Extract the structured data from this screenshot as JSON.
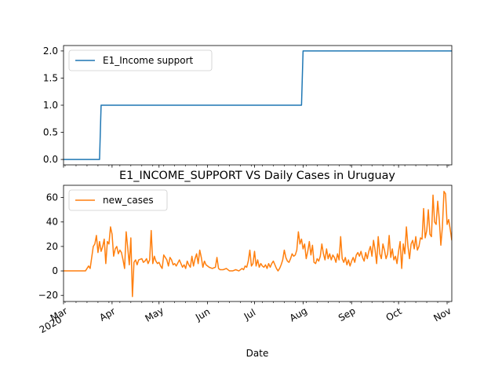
{
  "chart_data": [
    {
      "type": "line",
      "title": "",
      "xlabel": "",
      "ylabel": "",
      "xlim": [
        "2020-03-01",
        "2020-11-04"
      ],
      "ylim": [
        -0.1,
        2.1
      ],
      "yticks": [
        0.0,
        0.5,
        1.0,
        1.5,
        2.0
      ],
      "ytick_labels": [
        "0.0",
        "0.5",
        "1.0",
        "1.5",
        "2.0"
      ],
      "legend_position": "upper left",
      "grid": false,
      "series": [
        {
          "name": "E1_Income support",
          "color": "#1f77b4",
          "step_points": [
            [
              "2020-03-01",
              0
            ],
            [
              "2020-03-24",
              0
            ],
            [
              "2020-03-25",
              1
            ],
            [
              "2020-07-31",
              1
            ],
            [
              "2020-08-01",
              2
            ],
            [
              "2020-11-04",
              2
            ]
          ]
        }
      ]
    },
    {
      "type": "line",
      "title": "E1_INCOME_SUPPORT VS Daily Cases in Uruguay",
      "xlabel": "Date",
      "ylabel": "",
      "xlim": [
        "2020-03-01",
        "2020-11-04"
      ],
      "ylim": [
        -25,
        70
      ],
      "yticks": [
        -20,
        0,
        20,
        40,
        60
      ],
      "ytick_labels": [
        "−20",
        "0",
        "20",
        "40",
        "60"
      ],
      "xticks": [
        "2020-03-01",
        "2020-04-01",
        "2020-05-01",
        "2020-06-01",
        "2020-07-01",
        "2020-08-01",
        "2020-09-01",
        "2020-10-01",
        "2020-11-01"
      ],
      "xtick_labels": [
        "Mar\n2020",
        "Apr",
        "May",
        "Jun",
        "Jul",
        "Aug",
        "Sep",
        "Oct",
        "Nov"
      ],
      "legend_position": "upper left",
      "grid": false,
      "series": [
        {
          "name": "new_cases",
          "color": "#ff7f0e",
          "points": [
            [
              "2020-03-01",
              0
            ],
            [
              "2020-03-12",
              0
            ],
            [
              "2020-03-15",
              0
            ],
            [
              "2020-03-17",
              4
            ],
            [
              "2020-03-18",
              2
            ],
            [
              "2020-03-20",
              20
            ],
            [
              "2020-03-21",
              22
            ],
            [
              "2020-03-22",
              29
            ],
            [
              "2020-03-23",
              15
            ],
            [
              "2020-03-24",
              24
            ],
            [
              "2020-03-25",
              16
            ],
            [
              "2020-03-26",
              20
            ],
            [
              "2020-03-27",
              26
            ],
            [
              "2020-03-28",
              6
            ],
            [
              "2020-03-29",
              24
            ],
            [
              "2020-03-30",
              22
            ],
            [
              "2020-03-31",
              36
            ],
            [
              "2020-04-01",
              30
            ],
            [
              "2020-04-02",
              12
            ],
            [
              "2020-04-03",
              18
            ],
            [
              "2020-04-04",
              20
            ],
            [
              "2020-04-05",
              14
            ],
            [
              "2020-04-06",
              17
            ],
            [
              "2020-04-07",
              15
            ],
            [
              "2020-04-08",
              9
            ],
            [
              "2020-04-09",
              2
            ],
            [
              "2020-04-10",
              32
            ],
            [
              "2020-04-11",
              19
            ],
            [
              "2020-04-12",
              5
            ],
            [
              "2020-04-13",
              27
            ],
            [
              "2020-04-14",
              -21
            ],
            [
              "2020-04-15",
              7
            ],
            [
              "2020-04-16",
              9
            ],
            [
              "2020-04-17",
              5
            ],
            [
              "2020-04-18",
              9
            ],
            [
              "2020-04-20",
              10
            ],
            [
              "2020-04-21",
              7
            ],
            [
              "2020-04-22",
              8
            ],
            [
              "2020-04-23",
              10
            ],
            [
              "2020-04-24",
              6
            ],
            [
              "2020-04-25",
              9
            ],
            [
              "2020-04-26",
              33
            ],
            [
              "2020-04-27",
              6
            ],
            [
              "2020-04-28",
              12
            ],
            [
              "2020-04-29",
              8
            ],
            [
              "2020-04-30",
              6
            ],
            [
              "2020-05-01",
              7
            ],
            [
              "2020-05-02",
              4
            ],
            [
              "2020-05-03",
              2
            ],
            [
              "2020-05-04",
              13
            ],
            [
              "2020-05-05",
              11
            ],
            [
              "2020-05-06",
              9
            ],
            [
              "2020-05-07",
              4
            ],
            [
              "2020-05-08",
              11
            ],
            [
              "2020-05-09",
              9
            ],
            [
              "2020-05-10",
              5
            ],
            [
              "2020-05-11",
              6
            ],
            [
              "2020-05-12",
              4
            ],
            [
              "2020-05-14",
              9
            ],
            [
              "2020-05-15",
              6
            ],
            [
              "2020-05-16",
              3
            ],
            [
              "2020-05-17",
              5
            ],
            [
              "2020-05-18",
              2
            ],
            [
              "2020-05-19",
              8
            ],
            [
              "2020-05-20",
              5
            ],
            [
              "2020-05-21",
              3
            ],
            [
              "2020-05-22",
              12
            ],
            [
              "2020-05-23",
              4
            ],
            [
              "2020-05-24",
              10
            ],
            [
              "2020-05-25",
              14
            ],
            [
              "2020-05-26",
              6
            ],
            [
              "2020-05-27",
              17
            ],
            [
              "2020-05-28",
              11
            ],
            [
              "2020-05-29",
              3
            ],
            [
              "2020-05-30",
              8
            ],
            [
              "2020-05-31",
              5
            ],
            [
              "2020-06-02",
              3
            ],
            [
              "2020-06-04",
              2
            ],
            [
              "2020-06-06",
              3
            ],
            [
              "2020-06-07",
              11
            ],
            [
              "2020-06-08",
              2
            ],
            [
              "2020-06-09",
              1
            ],
            [
              "2020-06-11",
              1
            ],
            [
              "2020-06-13",
              2
            ],
            [
              "2020-06-15",
              0
            ],
            [
              "2020-06-17",
              0
            ],
            [
              "2020-06-19",
              1
            ],
            [
              "2020-06-21",
              0
            ],
            [
              "2020-06-23",
              2
            ],
            [
              "2020-06-24",
              1
            ],
            [
              "2020-06-25",
              4
            ],
            [
              "2020-06-26",
              3
            ],
            [
              "2020-06-27",
              8
            ],
            [
              "2020-06-28",
              17
            ],
            [
              "2020-06-29",
              4
            ],
            [
              "2020-06-30",
              6
            ],
            [
              "2020-07-01",
              16
            ],
            [
              "2020-07-02",
              4
            ],
            [
              "2020-07-03",
              9
            ],
            [
              "2020-07-04",
              3
            ],
            [
              "2020-07-05",
              6
            ],
            [
              "2020-07-06",
              4
            ],
            [
              "2020-07-07",
              3
            ],
            [
              "2020-07-08",
              5
            ],
            [
              "2020-07-09",
              2
            ],
            [
              "2020-07-10",
              6
            ],
            [
              "2020-07-11",
              3
            ],
            [
              "2020-07-12",
              6
            ],
            [
              "2020-07-13",
              8
            ],
            [
              "2020-07-14",
              5
            ],
            [
              "2020-07-15",
              2
            ],
            [
              "2020-07-16",
              0
            ],
            [
              "2020-07-17",
              2
            ],
            [
              "2020-07-18",
              5
            ],
            [
              "2020-07-19",
              9
            ],
            [
              "2020-07-20",
              17
            ],
            [
              "2020-07-21",
              11
            ],
            [
              "2020-07-22",
              8
            ],
            [
              "2020-07-23",
              7
            ],
            [
              "2020-07-24",
              10
            ],
            [
              "2020-07-25",
              14
            ],
            [
              "2020-07-26",
              12
            ],
            [
              "2020-07-27",
              13
            ],
            [
              "2020-07-28",
              17
            ],
            [
              "2020-07-29",
              32
            ],
            [
              "2020-07-30",
              22
            ],
            [
              "2020-07-31",
              26
            ],
            [
              "2020-08-01",
              18
            ],
            [
              "2020-08-02",
              22
            ],
            [
              "2020-08-03",
              10
            ],
            [
              "2020-08-04",
              16
            ],
            [
              "2020-08-05",
              24
            ],
            [
              "2020-08-06",
              13
            ],
            [
              "2020-08-07",
              21
            ],
            [
              "2020-08-08",
              7
            ],
            [
              "2020-08-09",
              6
            ],
            [
              "2020-08-10",
              10
            ],
            [
              "2020-08-11",
              8
            ],
            [
              "2020-08-12",
              12
            ],
            [
              "2020-08-13",
              22
            ],
            [
              "2020-08-14",
              14
            ],
            [
              "2020-08-15",
              9
            ],
            [
              "2020-08-16",
              18
            ],
            [
              "2020-08-17",
              10
            ],
            [
              "2020-08-18",
              14
            ],
            [
              "2020-08-19",
              9
            ],
            [
              "2020-08-20",
              13
            ],
            [
              "2020-08-21",
              11
            ],
            [
              "2020-08-22",
              7
            ],
            [
              "2020-08-23",
              14
            ],
            [
              "2020-08-24",
              9
            ],
            [
              "2020-08-25",
              28
            ],
            [
              "2020-08-26",
              10
            ],
            [
              "2020-08-27",
              7
            ],
            [
              "2020-08-28",
              11
            ],
            [
              "2020-08-29",
              5
            ],
            [
              "2020-08-30",
              9
            ],
            [
              "2020-08-31",
              4
            ],
            [
              "2020-09-01",
              8
            ],
            [
              "2020-09-02",
              11
            ],
            [
              "2020-09-03",
              7
            ],
            [
              "2020-09-04",
              13
            ],
            [
              "2020-09-05",
              15
            ],
            [
              "2020-09-06",
              12
            ],
            [
              "2020-09-07",
              16
            ],
            [
              "2020-09-08",
              11
            ],
            [
              "2020-09-09",
              8
            ],
            [
              "2020-09-10",
              15
            ],
            [
              "2020-09-11",
              10
            ],
            [
              "2020-09-12",
              16
            ],
            [
              "2020-09-13",
              20
            ],
            [
              "2020-09-14",
              12
            ],
            [
              "2020-09-15",
              25
            ],
            [
              "2020-09-16",
              17
            ],
            [
              "2020-09-17",
              6
            ],
            [
              "2020-09-18",
              28
            ],
            [
              "2020-09-19",
              14
            ],
            [
              "2020-09-20",
              10
            ],
            [
              "2020-09-21",
              22
            ],
            [
              "2020-09-22",
              17
            ],
            [
              "2020-09-23",
              10
            ],
            [
              "2020-09-24",
              14
            ],
            [
              "2020-09-25",
              29
            ],
            [
              "2020-09-26",
              11
            ],
            [
              "2020-09-27",
              18
            ],
            [
              "2020-09-28",
              9
            ],
            [
              "2020-09-29",
              12
            ],
            [
              "2020-09-30",
              6
            ],
            [
              "2020-10-01",
              16
            ],
            [
              "2020-10-02",
              24
            ],
            [
              "2020-10-03",
              2
            ],
            [
              "2020-10-04",
              22
            ],
            [
              "2020-10-05",
              14
            ],
            [
              "2020-10-06",
              36
            ],
            [
              "2020-10-07",
              20
            ],
            [
              "2020-10-08",
              10
            ],
            [
              "2020-10-09",
              22
            ],
            [
              "2020-10-10",
              25
            ],
            [
              "2020-10-11",
              18
            ],
            [
              "2020-10-12",
              28
            ],
            [
              "2020-10-13",
              17
            ],
            [
              "2020-10-14",
              20
            ],
            [
              "2020-10-15",
              27
            ],
            [
              "2020-10-16",
              26
            ],
            [
              "2020-10-17",
              51
            ],
            [
              "2020-10-18",
              27
            ],
            [
              "2020-10-19",
              33
            ],
            [
              "2020-10-20",
              50
            ],
            [
              "2020-10-21",
              30
            ],
            [
              "2020-10-22",
              28
            ],
            [
              "2020-10-23",
              62
            ],
            [
              "2020-10-24",
              40
            ],
            [
              "2020-10-25",
              38
            ],
            [
              "2020-10-26",
              57
            ],
            [
              "2020-10-27",
              42
            ],
            [
              "2020-10-28",
              21
            ],
            [
              "2020-10-29",
              36
            ],
            [
              "2020-10-30",
              65
            ],
            [
              "2020-10-31",
              63
            ],
            [
              "2020-11-01",
              38
            ],
            [
              "2020-11-02",
              42
            ],
            [
              "2020-11-03",
              34
            ],
            [
              "2020-11-04",
              25
            ]
          ]
        }
      ]
    }
  ]
}
